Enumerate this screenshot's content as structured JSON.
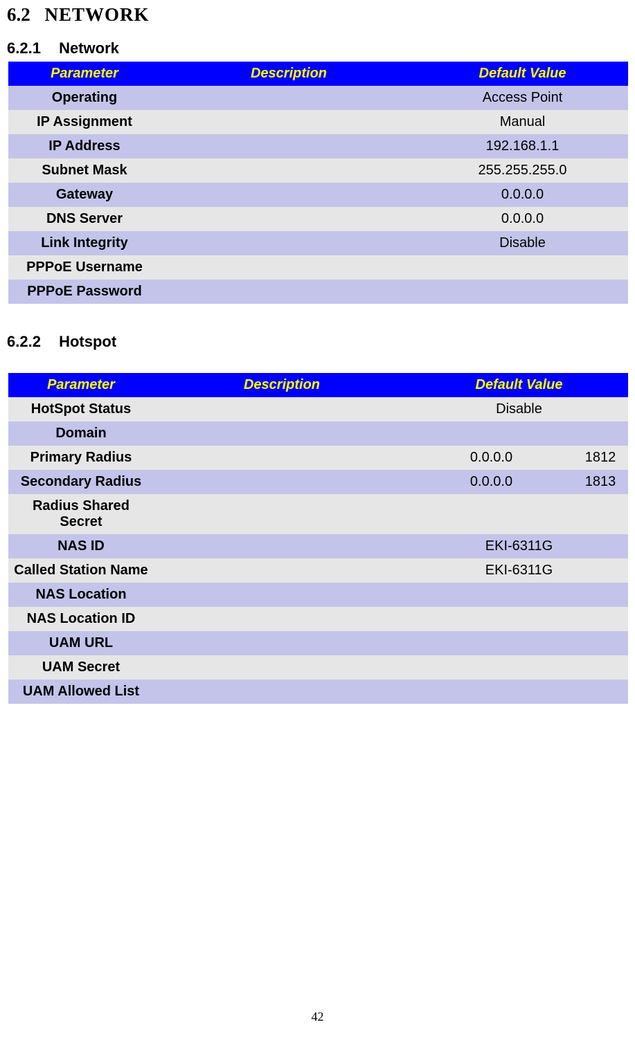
{
  "section": {
    "number": "6.2",
    "title": "NETWORK"
  },
  "sub1": {
    "number": "6.2.1",
    "title": "Network"
  },
  "sub2": {
    "number": "6.2.2",
    "title": "Hotspot"
  },
  "headers": {
    "param": "Parameter",
    "desc": "Description",
    "def": "Default Value"
  },
  "table1": {
    "rows": [
      {
        "param": "Operating",
        "desc": "",
        "def": "Access Point"
      },
      {
        "param": "IP Assignment",
        "desc": "",
        "def": "Manual"
      },
      {
        "param": "IP Address",
        "desc": "",
        "def": "192.168.1.1"
      },
      {
        "param": "Subnet Mask",
        "desc": "",
        "def": "255.255.255.0"
      },
      {
        "param": "Gateway",
        "desc": "",
        "def": "0.0.0.0"
      },
      {
        "param": "DNS Server",
        "desc": "",
        "def": "0.0.0.0"
      },
      {
        "param": "Link Integrity",
        "desc": "",
        "def": "Disable"
      },
      {
        "param": "PPPoE Username",
        "desc": "",
        "def": ""
      },
      {
        "param": "PPPoE Password",
        "desc": "",
        "def": ""
      }
    ]
  },
  "table2": {
    "rows": [
      {
        "param": "HotSpot Status",
        "desc": "",
        "def": "Disable",
        "extra": null,
        "alt": false
      },
      {
        "param": "Domain",
        "desc": "",
        "def": "",
        "extra": null,
        "alt": true
      },
      {
        "param": "Primary Radius",
        "desc": "",
        "def": "0.0.0.0",
        "extra": "1812",
        "alt": false
      },
      {
        "param": "Secondary Radius",
        "desc": "",
        "def": "0.0.0.0",
        "extra": "1813",
        "alt": true
      },
      {
        "param": "Radius Shared Secret",
        "desc": "",
        "def": "",
        "extra": null,
        "alt": false
      },
      {
        "param": "NAS ID",
        "desc": "",
        "def": "EKI-6311G",
        "extra": null,
        "alt": true
      },
      {
        "param": "Called Station Name",
        "desc": "",
        "def": "EKI-6311G",
        "extra": null,
        "alt": false
      },
      {
        "param": "NAS Location",
        "desc": "",
        "def": "",
        "extra": null,
        "alt": true
      },
      {
        "param": "NAS Location ID",
        "desc": "",
        "def": "",
        "extra": null,
        "alt": false
      },
      {
        "param": "UAM URL",
        "desc": "",
        "def": "",
        "extra": null,
        "alt": true
      },
      {
        "param": "UAM Secret",
        "desc": "",
        "def": "",
        "extra": null,
        "alt": false
      },
      {
        "param": "UAM Allowed List",
        "desc": "",
        "def": "",
        "extra": null,
        "alt": true
      }
    ]
  },
  "pageNumber": "42",
  "colors": {
    "header_bg": "#0000ff",
    "header_fg": "#ffff00",
    "row_alt": "#c4c4ea",
    "row_norm": "#e6e6e6"
  }
}
